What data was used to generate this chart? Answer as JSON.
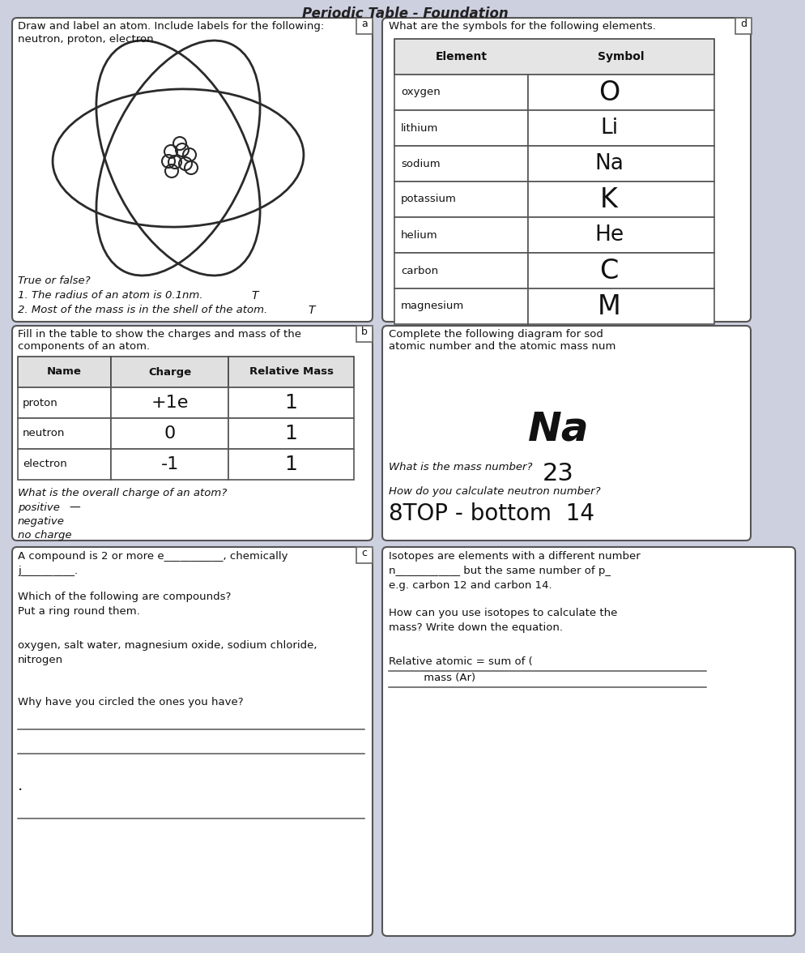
{
  "bg_color": "#cdd0df",
  "title": "Periodic Table - Foundation",
  "section_a_title": "Draw and label an atom. Include labels for the following:",
  "section_a_label": "a",
  "section_a_subtitle": "neutron, proton, electron.",
  "true_false_title": "True or false?",
  "true_false_1": "1. The radius of an atom is 0.1nm.",
  "true_false_1_answer": "T",
  "true_false_2": "2. Most of the mass is in the shell of the atom.",
  "true_false_2_answer": "T",
  "section_d_title": "What are the symbols for the following elements.",
  "section_d_label": "d",
  "elements": [
    "oxygen",
    "lithium",
    "sodium",
    "potassium",
    "helium",
    "carbon",
    "magnesium"
  ],
  "symbols": [
    "O",
    "Li",
    "Na",
    "K",
    "He",
    "C",
    "M"
  ],
  "section_b_title1": "Fill in the table to show the charges and mass of the",
  "section_b_title2": "components of an atom.",
  "section_b_label": "b",
  "table_b_headers": [
    "Name",
    "Charge",
    "Relative Mass"
  ],
  "table_b_rows": [
    [
      "proton",
      "+1e",
      "1"
    ],
    [
      "neutron",
      "0",
      "1"
    ],
    [
      "electron",
      "-1",
      "1"
    ]
  ],
  "overall_charge_q": "What is the overall charge of an atom?",
  "overall_charge_options": [
    "positive",
    "negative",
    "no charge"
  ],
  "section_b2_title1": "Complete the following diagram for sod",
  "section_b2_title2": "atomic number and the atomic mass num",
  "na_symbol": "Na",
  "mass_number_q": "What is the mass number?",
  "mass_number_a": "23",
  "neutron_number_q": "How do you calculate neutron number?",
  "neutron_number_a": "8TOP - bottom  14",
  "section_c_label": "c",
  "section_c_line1": "A compound is 2 or more e___________, chemically",
  "section_c_line2": "j__________.",
  "compounds_q": "Which of the following are compounds?",
  "compounds_instruction": "Put a ring round them.",
  "compounds_list1": "oxygen, salt water, magnesium oxide, sodium chloride,",
  "compounds_list2": "nitrogen",
  "why_circled": "Why have you circled the ones you have?",
  "isotopes_text1": "Isotopes are elements with a different number",
  "isotopes_text2": "n____________ but the same number of p_",
  "isotopes_example": "e.g. carbon 12 and carbon 14.",
  "isotopes_q1": "How can you use isotopes to calculate the",
  "isotopes_q2": "mass? Write down the equation.",
  "relative_atomic1": "Relative atomic = sum of (",
  "mass_ar": "     mass (Ar)"
}
